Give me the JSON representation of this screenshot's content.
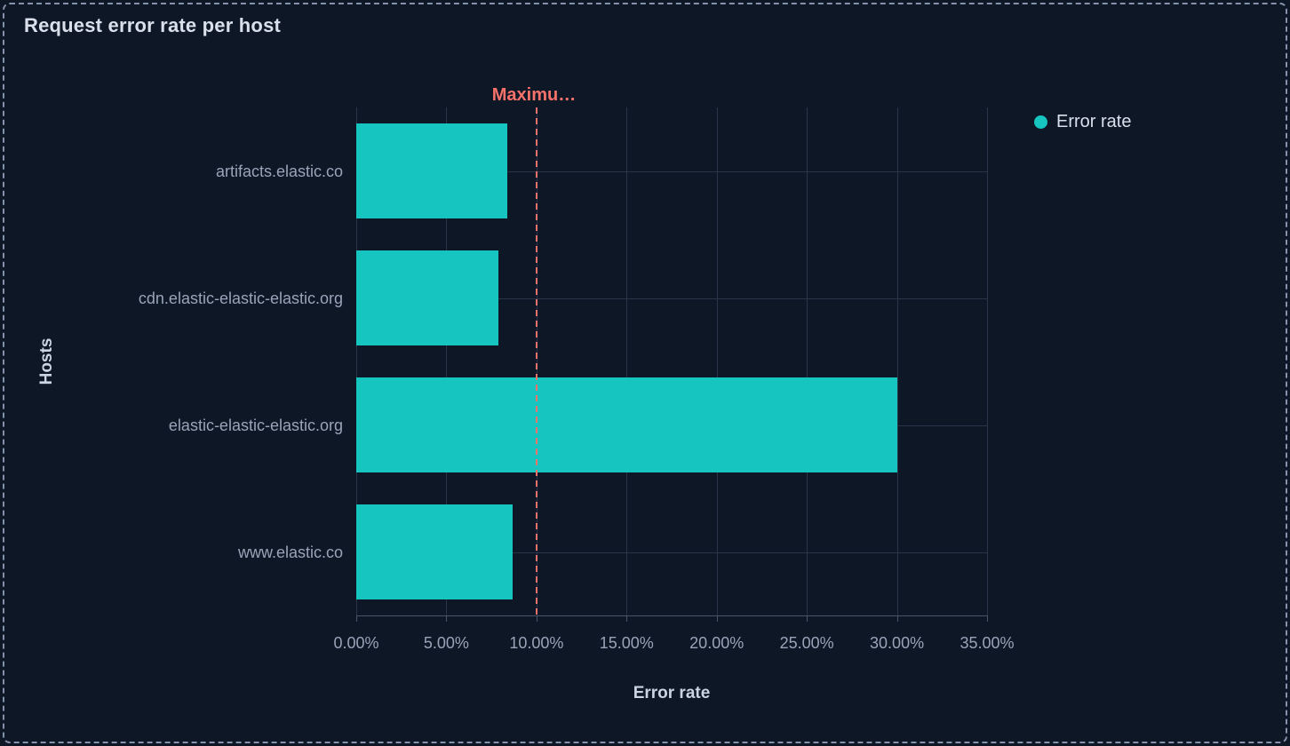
{
  "panel": {
    "title": "Request error rate per host",
    "background": "#0D1726",
    "border_color": "#8493AB"
  },
  "legend": {
    "position": "right",
    "items": [
      {
        "label": "Error rate",
        "color": "#16C5C0"
      }
    ]
  },
  "chart_data": {
    "type": "bar",
    "orientation": "horizontal",
    "title": "Request error rate per host",
    "xlabel": "Error rate",
    "ylabel": "Hosts",
    "categories": [
      "artifacts.elastic.co",
      "cdn.elastic-elastic-elastic.org",
      "elastic-elastic-elastic.org",
      "www.elastic.co"
    ],
    "series": [
      {
        "name": "Error rate",
        "values": [
          8.4,
          7.9,
          30.0,
          8.7
        ]
      }
    ],
    "unit": "%",
    "xlim": [
      0,
      35
    ],
    "x_tick_values": [
      0,
      5,
      10,
      15,
      20,
      25,
      30,
      35
    ],
    "x_tick_labels": [
      "0.00%",
      "5.00%",
      "10.00%",
      "15.00%",
      "20.00%",
      "25.00%",
      "30.00%",
      "35.00%"
    ],
    "grid": true,
    "legend_position": "right",
    "threshold": {
      "label": "Maximu…",
      "value": 10,
      "color": "#F6726A",
      "style": "dashed"
    },
    "colors": {
      "bar": "#16C5C0",
      "grid": "#2B3549",
      "axis": "#485468"
    }
  }
}
